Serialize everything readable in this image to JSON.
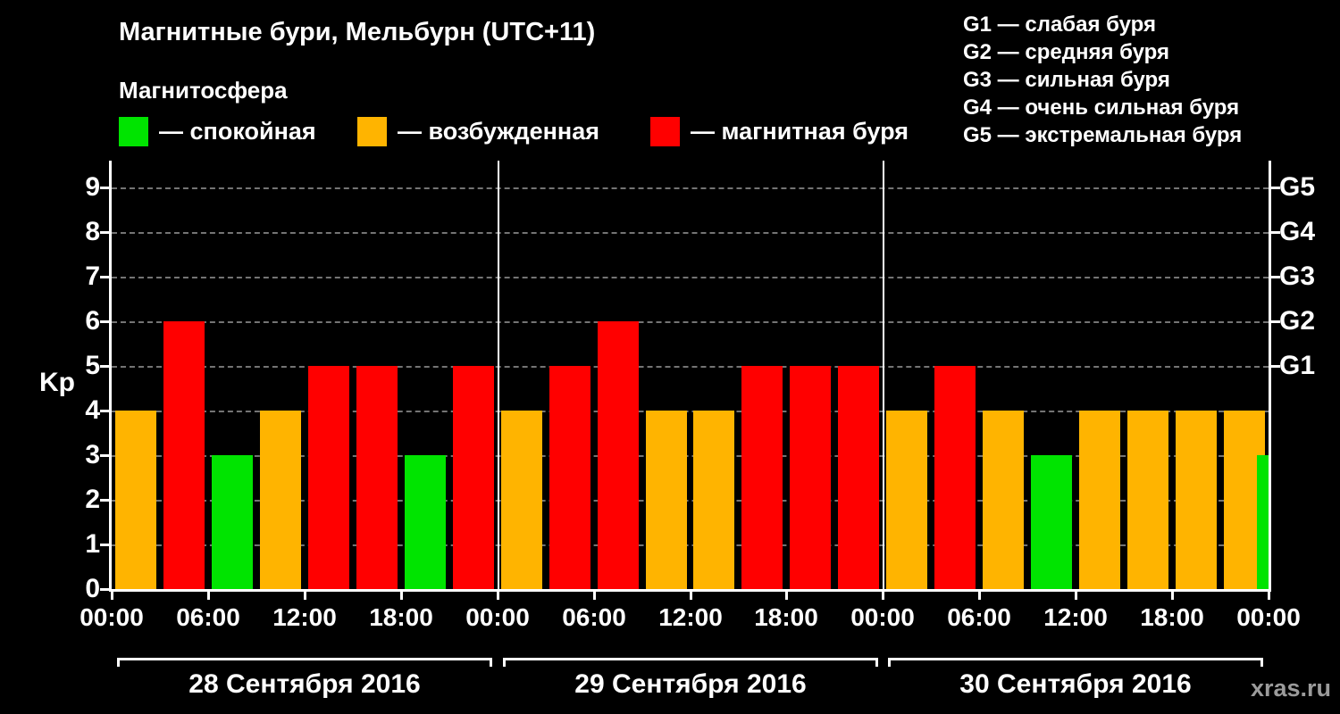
{
  "title": "Магнитные бури, Мельбурн (UTC+11)",
  "subtitle": "Магнитосфера",
  "legend": [
    {
      "key": "quiet",
      "label": "— спокойная",
      "color": "#00e400"
    },
    {
      "key": "excited",
      "label": "— возбужденная",
      "color": "#ffb400"
    },
    {
      "key": "storm",
      "label": "— магнитная буря",
      "color": "#ff0000"
    }
  ],
  "storm_scale": [
    "G1 — слабая буря",
    "G2 — средняя буря",
    "G3 — сильная буря",
    "G4 — очень сильная буря",
    "G5 — экстремальная буря"
  ],
  "watermark": "xras.ru",
  "chart_data": {
    "type": "bar",
    "title": "Магнитные бури, Мельбурн (UTC+11)",
    "ylabel": "Kp",
    "ylim": [
      0,
      9
    ],
    "yticks": [
      0,
      1,
      2,
      3,
      4,
      5,
      6,
      7,
      8,
      9
    ],
    "right_axis_ticks": [
      {
        "kp": 5,
        "label": "G1"
      },
      {
        "kp": 6,
        "label": "G2"
      },
      {
        "kp": 7,
        "label": "G3"
      },
      {
        "kp": 8,
        "label": "G4"
      },
      {
        "kp": 9,
        "label": "G5"
      }
    ],
    "grid": "dashed-horizontal",
    "hours_per_bar": 3,
    "time_tick_hours": [
      0,
      6,
      12,
      18,
      24,
      30,
      36,
      42,
      48,
      54,
      60,
      66,
      72
    ],
    "time_tick_labels": [
      "00:00",
      "06:00",
      "12:00",
      "18:00",
      "00:00",
      "06:00",
      "12:00",
      "18:00",
      "00:00",
      "06:00",
      "12:00",
      "18:00",
      "00:00"
    ],
    "days": [
      {
        "label": "28 Сентября 2016",
        "bars": [
          {
            "time": "00:00",
            "kp": 4,
            "category": "excited"
          },
          {
            "time": "03:00",
            "kp": 6,
            "category": "storm"
          },
          {
            "time": "06:00",
            "kp": 3,
            "category": "quiet"
          },
          {
            "time": "09:00",
            "kp": 4,
            "category": "excited"
          },
          {
            "time": "12:00",
            "kp": 5,
            "category": "storm"
          },
          {
            "time": "15:00",
            "kp": 5,
            "category": "storm"
          },
          {
            "time": "18:00",
            "kp": 3,
            "category": "quiet"
          },
          {
            "time": "21:00",
            "kp": 5,
            "category": "storm"
          }
        ]
      },
      {
        "label": "29 Сентября 2016",
        "bars": [
          {
            "time": "00:00",
            "kp": 4,
            "category": "excited"
          },
          {
            "time": "03:00",
            "kp": 5,
            "category": "storm"
          },
          {
            "time": "06:00",
            "kp": 6,
            "category": "storm"
          },
          {
            "time": "09:00",
            "kp": 4,
            "category": "excited"
          },
          {
            "time": "12:00",
            "kp": 4,
            "category": "excited"
          },
          {
            "time": "15:00",
            "kp": 5,
            "category": "storm"
          },
          {
            "time": "18:00",
            "kp": 5,
            "category": "storm"
          },
          {
            "time": "21:00",
            "kp": 5,
            "category": "storm"
          }
        ]
      },
      {
        "label": "30 Сентября 2016",
        "bars": [
          {
            "time": "00:00",
            "kp": 4,
            "category": "excited"
          },
          {
            "time": "03:00",
            "kp": 5,
            "category": "storm"
          },
          {
            "time": "06:00",
            "kp": 4,
            "category": "excited"
          },
          {
            "time": "09:00",
            "kp": 3,
            "category": "quiet"
          },
          {
            "time": "12:00",
            "kp": 4,
            "category": "excited"
          },
          {
            "time": "15:00",
            "kp": 4,
            "category": "excited"
          },
          {
            "time": "18:00",
            "kp": 4,
            "category": "excited"
          },
          {
            "time": "21:00",
            "kp": 4,
            "category": "excited"
          }
        ]
      }
    ],
    "partial_next_bar": {
      "kp": 3,
      "category": "quiet"
    }
  }
}
